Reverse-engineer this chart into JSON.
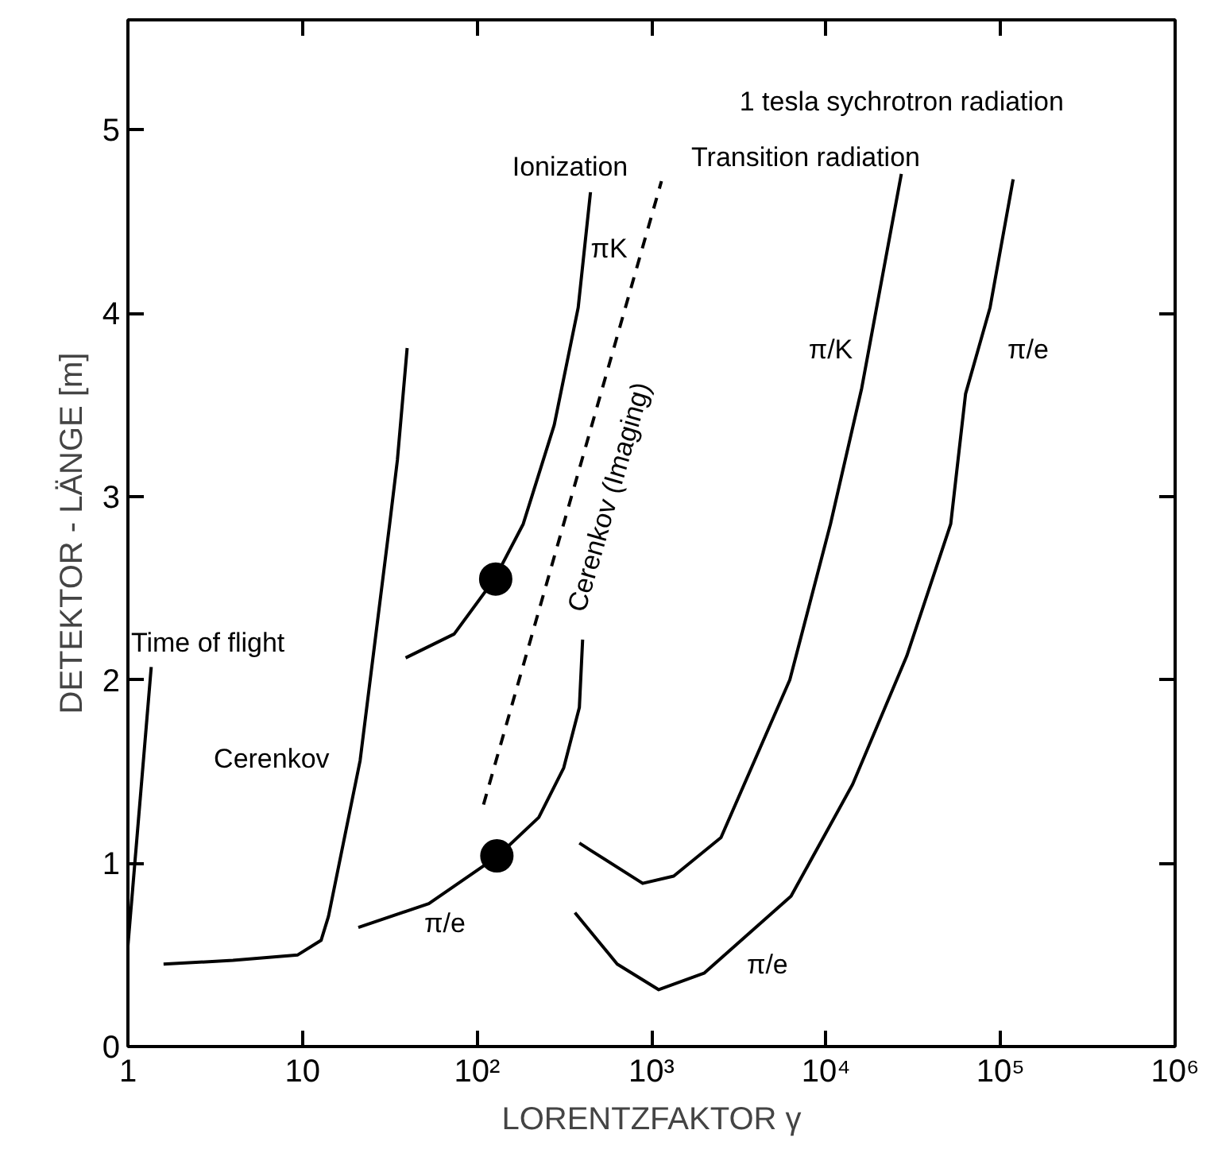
{
  "chart_data": {
    "type": "line",
    "xlabel": "LORENTZFAKTOR γ",
    "ylabel": "DETEKTOR - LÄNGE [m]",
    "log": "x",
    "xlim": [
      1,
      1000000
    ],
    "ylim": [
      0,
      5.6
    ],
    "xticks": [
      1,
      10,
      {
        "value": 100,
        "label": "10²"
      },
      {
        "value": 1000,
        "label": "10³"
      },
      {
        "value": 10000,
        "label": "10⁴"
      },
      {
        "value": 100000,
        "label": "10⁵"
      },
      {
        "value": 1000000,
        "label": "10⁶"
      }
    ],
    "yticks": [
      0,
      1,
      2,
      3,
      4,
      5
    ],
    "grid": false,
    "line_style": "solid",
    "marker": "none",
    "series": [
      {
        "color": "#000000",
        "x": [
          1,
          1.36
        ],
        "values": [
          0.55,
          2.07
        ]
      },
      {
        "color": "#000000",
        "x": [
          1.6,
          4,
          9.4,
          12.8,
          14.1,
          21.4,
          31.6,
          35,
          39.8
        ],
        "values": [
          0.45,
          0.47,
          0.5,
          0.58,
          0.71,
          1.56,
          2.85,
          3.2,
          3.81
        ]
      },
      {
        "color": "#000000",
        "x": [
          39,
          74,
          126,
          184,
          277,
          380,
          447
        ],
        "values": [
          2.12,
          2.25,
          2.55,
          2.85,
          3.39,
          4.03,
          4.66
        ]
      },
      {
        "color": "#000000",
        "x": [
          20.9,
          53,
          132,
          226,
          314,
          386,
          403
        ],
        "values": [
          0.65,
          0.78,
          1.04,
          1.25,
          1.52,
          1.85,
          2.22
        ]
      },
      {
        "name": "Cerenkov (Imaging)",
        "color": "#000000",
        "line_style": "dashed",
        "x": [
          109,
          1140
        ],
        "values": [
          1.32,
          4.72
        ]
      },
      {
        "color": "#000000",
        "x": [
          386,
          448,
          890,
          1340,
          2500,
          6200,
          10600,
          16000,
          27000
        ],
        "values": [
          1.11,
          1.07,
          0.89,
          0.93,
          1.14,
          2.0,
          2.85,
          3.59,
          4.76
        ]
      },
      {
        "color": "#000000",
        "x": [
          364,
          636,
          1100,
          2000,
          6300,
          14200,
          29000,
          51800,
          63000,
          87000,
          118000
        ],
        "values": [
          0.73,
          0.45,
          0.31,
          0.4,
          0.82,
          1.43,
          2.13,
          2.85,
          3.56,
          4.03,
          4.73
        ]
      },
      {
        "type": "scatter",
        "marker": "circle",
        "color": "#000000",
        "x": [
          128,
          130
        ],
        "values": [
          2.55,
          1.04
        ]
      }
    ],
    "annotations": [
      "Time of flight",
      "Cerenkov",
      "Ionization",
      "πK",
      "π/e",
      "Transition radiation",
      "1 tesla sychrotron radiation",
      "π/K",
      "π/e",
      "π/e"
    ]
  }
}
